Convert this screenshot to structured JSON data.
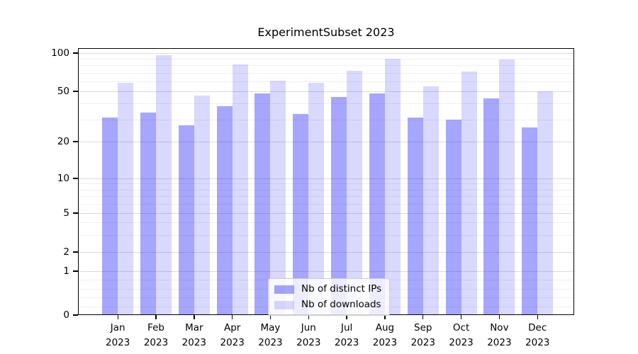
{
  "title": "ExperimentSubset 2023",
  "chart_data": {
    "type": "bar",
    "title": "ExperimentSubset 2023",
    "xlabel": "",
    "ylabel": "",
    "y_scale": "log-like with 0 baseline (symlog)",
    "ylim": [
      0,
      110
    ],
    "y_ticks": [
      0,
      1,
      2,
      5,
      10,
      20,
      50,
      100
    ],
    "y_minor_gridlines": [
      0.2,
      0.4,
      0.6,
      0.8,
      3,
      4,
      6,
      7,
      8,
      9,
      30,
      40,
      60,
      70,
      80,
      90
    ],
    "grid": "horizontal major + minor",
    "legend_position": "bottom-center",
    "categories": [
      {
        "line1": "Jan",
        "line2": "2023"
      },
      {
        "line1": "Feb",
        "line2": "2023"
      },
      {
        "line1": "Mar",
        "line2": "2023"
      },
      {
        "line1": "Apr",
        "line2": "2023"
      },
      {
        "line1": "May",
        "line2": "2023"
      },
      {
        "line1": "Jun",
        "line2": "2023"
      },
      {
        "line1": "Jul",
        "line2": "2023"
      },
      {
        "line1": "Aug",
        "line2": "2023"
      },
      {
        "line1": "Sep",
        "line2": "2023"
      },
      {
        "line1": "Oct",
        "line2": "2023"
      },
      {
        "line1": "Nov",
        "line2": "2023"
      },
      {
        "line1": "Dec",
        "line2": "2023"
      }
    ],
    "series": [
      {
        "name": "Nb of distinct IPs",
        "color": "rgba(0,0,255,0.35)",
        "values": [
          31,
          34,
          27,
          38,
          48,
          33,
          45,
          48,
          31,
          30,
          44,
          26
        ]
      },
      {
        "name": "Nb of downloads",
        "color": "rgba(0,0,255,0.15)",
        "values": [
          58,
          96,
          46,
          81,
          61,
          58,
          73,
          90,
          55,
          72,
          89,
          50
        ]
      }
    ]
  },
  "colors": {
    "major_gridline": "#dcdcdc",
    "minor_gridline": "#efefef",
    "axis": "#000000",
    "legend_border": "#cccccc",
    "legend_background": "rgba(255,255,255,0.8)"
  }
}
